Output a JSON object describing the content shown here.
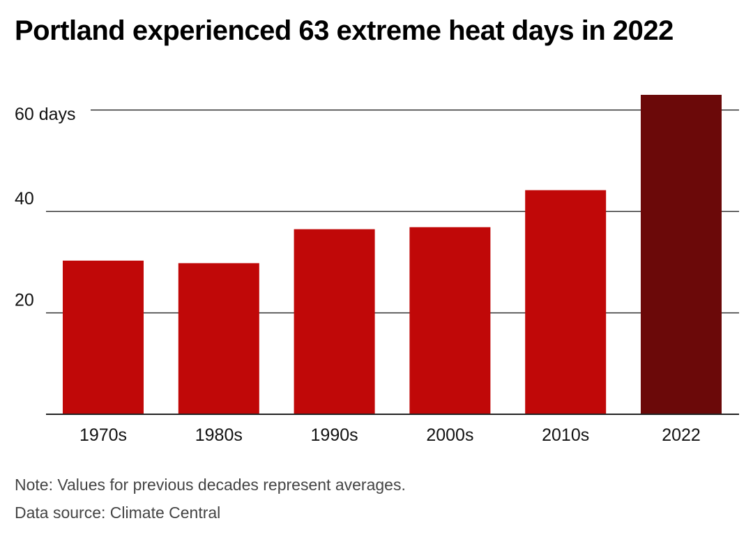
{
  "chart_data": {
    "type": "bar",
    "title": "Portland experienced 63 extreme heat days in 2022",
    "categories": [
      "1970s",
      "1980s",
      "1990s",
      "2000s",
      "2010s",
      "2022"
    ],
    "values": [
      30.3,
      29.8,
      36.5,
      36.9,
      44.2,
      63
    ],
    "y_ticks": [
      20,
      40,
      60
    ],
    "y_tick_labels": [
      "20",
      "40",
      "60 days"
    ],
    "ylim": [
      0,
      63
    ],
    "grid": true,
    "colors": {
      "bar": "#c00808",
      "highlight": "#6b0909",
      "grid": "#333333"
    }
  },
  "footer": {
    "note": "Note: Values for previous decades represent averages.",
    "source": "Data source: Climate Central"
  }
}
